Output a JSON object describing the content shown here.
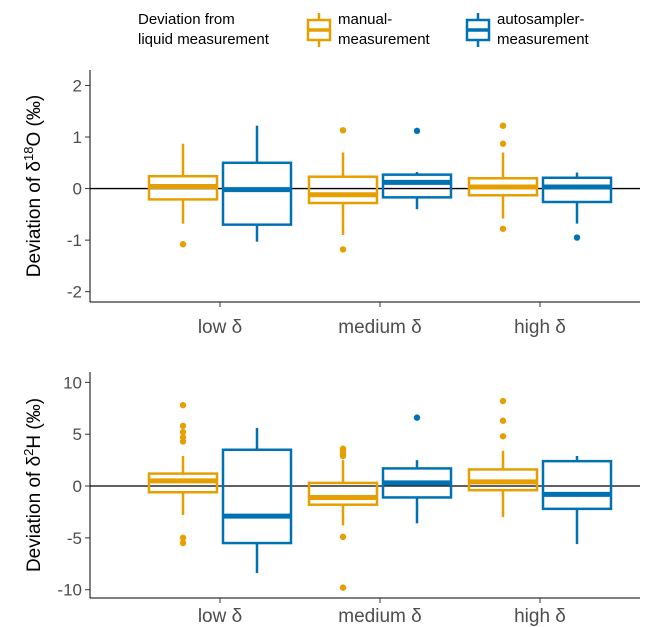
{
  "legend": {
    "title_line1": "Deviation from",
    "title_line2": "liquid measurement",
    "items": [
      {
        "line1": "manual-",
        "line2": "measurement",
        "color": "#E69F00"
      },
      {
        "line1": "autosampler-",
        "line2": "measurement",
        "color": "#0072B2"
      }
    ]
  },
  "colors": {
    "manual": "#E69F00",
    "autosampler": "#0072B2",
    "zero_line": "#000000"
  },
  "chart_data": [
    {
      "type": "boxplot",
      "ylabel": "Deviation of δ18O (‰)",
      "ylabel_parts": {
        "pre": "Deviation of δ",
        "sup": "18",
        "post": "O (‰)"
      },
      "categories": [
        "low δ",
        "medium δ",
        "high δ"
      ],
      "ylim": [
        -2.2,
        2.3
      ],
      "yticks": [
        2,
        1,
        0,
        -1,
        -2
      ],
      "ytick_labels": [
        "2",
        "1",
        "0",
        "-1",
        "-2"
      ],
      "zero_line": 0,
      "series": [
        {
          "name": "manual-measurement",
          "boxes": [
            {
              "q1": -0.21,
              "median": 0.04,
              "q3": 0.24,
              "whisker_low": -0.68,
              "whisker_high": 0.87,
              "outliers": [
                -1.08
              ]
            },
            {
              "q1": -0.28,
              "median": -0.12,
              "q3": 0.23,
              "whisker_low": -0.9,
              "whisker_high": 0.7,
              "outliers": [
                1.13,
                -1.18
              ]
            },
            {
              "q1": -0.13,
              "median": 0.03,
              "q3": 0.2,
              "whisker_low": -0.58,
              "whisker_high": 0.7,
              "outliers": [
                1.22,
                0.87,
                -0.78
              ]
            }
          ]
        },
        {
          "name": "autosampler-measurement",
          "boxes": [
            {
              "q1": -0.7,
              "median": -0.02,
              "q3": 0.5,
              "whisker_low": -1.03,
              "whisker_high": 1.22,
              "outliers": []
            },
            {
              "q1": -0.17,
              "median": 0.12,
              "q3": 0.27,
              "whisker_low": -0.4,
              "whisker_high": 0.32,
              "outliers": [
                1.12
              ]
            },
            {
              "q1": -0.26,
              "median": 0.03,
              "q3": 0.21,
              "whisker_low": -0.68,
              "whisker_high": 0.31,
              "outliers": [
                -0.95
              ]
            }
          ]
        }
      ]
    },
    {
      "type": "boxplot",
      "ylabel": "Deviation of δ2H (‰)",
      "ylabel_parts": {
        "pre": "Deviation of δ",
        "sup": "2",
        "post": "H (‰)"
      },
      "categories": [
        "low δ",
        "medium δ",
        "high δ"
      ],
      "ylim": [
        -10.8,
        11.0
      ],
      "yticks": [
        10,
        5,
        0,
        -5,
        -10
      ],
      "ytick_labels": [
        "10",
        "5",
        "0",
        "-5",
        "-10"
      ],
      "zero_line": 0,
      "series": [
        {
          "name": "manual-measurement",
          "boxes": [
            {
              "q1": -0.6,
              "median": 0.5,
              "q3": 1.2,
              "whisker_low": -2.8,
              "whisker_high": 2.9,
              "outliers": [
                7.8,
                5.8,
                5.2,
                4.7,
                4.3,
                -5.0,
                -5.5
              ]
            },
            {
              "q1": -1.8,
              "median": -1.1,
              "q3": 0.3,
              "whisker_low": -3.8,
              "whisker_high": 2.5,
              "outliers": [
                3.6,
                3.4,
                3.1,
                2.9,
                -4.9,
                -9.8
              ]
            },
            {
              "q1": -0.4,
              "median": 0.4,
              "q3": 1.6,
              "whisker_low": -3.0,
              "whisker_high": 3.4,
              "outliers": [
                8.2,
                6.3,
                4.8
              ]
            }
          ]
        },
        {
          "name": "autosampler-measurement",
          "boxes": [
            {
              "q1": -5.5,
              "median": -2.9,
              "q3": 3.5,
              "whisker_low": -8.4,
              "whisker_high": 5.6,
              "outliers": []
            },
            {
              "q1": -1.1,
              "median": 0.3,
              "q3": 1.7,
              "whisker_low": -3.6,
              "whisker_high": 2.5,
              "outliers": [
                6.6
              ]
            },
            {
              "q1": -2.2,
              "median": -0.8,
              "q3": 2.4,
              "whisker_low": -5.6,
              "whisker_high": 2.9,
              "outliers": []
            }
          ]
        }
      ]
    }
  ]
}
